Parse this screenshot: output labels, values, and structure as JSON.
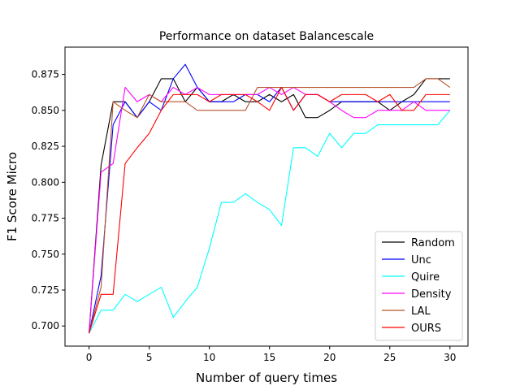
{
  "chart_data": {
    "type": "line",
    "title": "Performance on dataset Balancescale",
    "xlabel": "Number of query times",
    "ylabel": "F1 Score Micro",
    "xlim": [
      -2,
      31.5
    ],
    "ylim": [
      0.686,
      0.894
    ],
    "xticks": [
      0,
      5,
      10,
      15,
      20,
      25,
      30
    ],
    "yticks": [
      0.7,
      0.725,
      0.75,
      0.775,
      0.8,
      0.825,
      0.85,
      0.875
    ],
    "ytick_labels": [
      "0.700",
      "0.725",
      "0.750",
      "0.775",
      "0.800",
      "0.825",
      "0.850",
      "0.875"
    ],
    "grid": false,
    "legend_position": "lower-right",
    "x": [
      0,
      1,
      2,
      3,
      4,
      5,
      6,
      7,
      8,
      9,
      10,
      11,
      12,
      13,
      14,
      15,
      16,
      17,
      18,
      19,
      20,
      21,
      22,
      23,
      24,
      25,
      26,
      27,
      28,
      29,
      30
    ],
    "series": [
      {
        "name": "Random",
        "color": "#000000",
        "values": [
          0.695,
          0.812,
          0.856,
          0.856,
          0.845,
          0.856,
          0.872,
          0.872,
          0.856,
          0.866,
          0.856,
          0.856,
          0.861,
          0.856,
          0.856,
          0.861,
          0.856,
          0.861,
          0.845,
          0.845,
          0.85,
          0.856,
          0.856,
          0.856,
          0.856,
          0.85,
          0.856,
          0.861,
          0.872,
          0.872,
          0.872
        ]
      },
      {
        "name": "Unc",
        "color": "#0000ff",
        "values": [
          0.695,
          0.735,
          0.84,
          0.856,
          0.845,
          0.856,
          0.85,
          0.872,
          0.882,
          0.866,
          0.856,
          0.856,
          0.856,
          0.861,
          0.861,
          0.856,
          0.866,
          0.85,
          0.861,
          0.861,
          0.856,
          0.856,
          0.856,
          0.856,
          0.856,
          0.856,
          0.856,
          0.856,
          0.856,
          0.856,
          0.856
        ]
      },
      {
        "name": "Quire",
        "color": "#00ffff",
        "values": [
          0.695,
          0.711,
          0.711,
          0.722,
          0.717,
          0.722,
          0.727,
          0.706,
          0.717,
          0.727,
          0.754,
          0.786,
          0.786,
          0.792,
          0.786,
          0.781,
          0.77,
          0.824,
          0.824,
          0.818,
          0.834,
          0.824,
          0.834,
          0.834,
          0.84,
          0.84,
          0.84,
          0.84,
          0.84,
          0.84,
          0.85
        ]
      },
      {
        "name": "Density",
        "color": "#ff00ff",
        "values": [
          0.695,
          0.807,
          0.813,
          0.866,
          0.856,
          0.861,
          0.856,
          0.866,
          0.861,
          0.866,
          0.861,
          0.861,
          0.861,
          0.861,
          0.861,
          0.866,
          0.861,
          0.866,
          0.861,
          0.861,
          0.856,
          0.85,
          0.845,
          0.845,
          0.85,
          0.85,
          0.85,
          0.856,
          0.85,
          0.85,
          0.85
        ]
      },
      {
        "name": "LAL",
        "color": "#b5532b",
        "values": [
          0.695,
          0.727,
          0.856,
          0.85,
          0.845,
          0.861,
          0.856,
          0.856,
          0.856,
          0.85,
          0.85,
          0.85,
          0.85,
          0.85,
          0.866,
          0.866,
          0.866,
          0.866,
          0.866,
          0.866,
          0.866,
          0.866,
          0.866,
          0.866,
          0.866,
          0.866,
          0.866,
          0.866,
          0.872,
          0.872,
          0.866
        ]
      },
      {
        "name": "OURS",
        "color": "#ff0000",
        "values": [
          0.695,
          0.722,
          0.722,
          0.813,
          0.824,
          0.834,
          0.85,
          0.861,
          0.861,
          0.861,
          0.856,
          0.861,
          0.861,
          0.861,
          0.856,
          0.85,
          0.866,
          0.85,
          0.861,
          0.861,
          0.856,
          0.861,
          0.861,
          0.861,
          0.856,
          0.861,
          0.85,
          0.85,
          0.861,
          0.861,
          0.861
        ]
      }
    ]
  }
}
